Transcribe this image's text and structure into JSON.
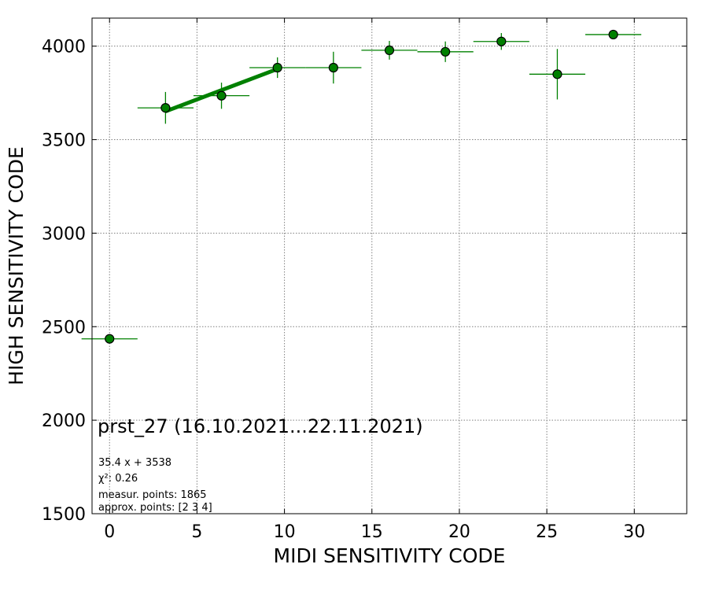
{
  "chart_data": {
    "type": "scatter",
    "xlabel": "MIDI SENSITIVITY CODE",
    "ylabel": "HIGH SENSITIVITY CODE",
    "xlim": [
      -1,
      33
    ],
    "ylim": [
      1500,
      4150
    ],
    "xticks": [
      0,
      5,
      10,
      15,
      20,
      25,
      30
    ],
    "yticks": [
      1500,
      2000,
      2500,
      3000,
      3500,
      4000
    ],
    "grid": true,
    "colors": {
      "points": "#008000",
      "edge": "#000000",
      "fit": "#008000",
      "grid": "#808080"
    },
    "points": [
      {
        "x": 0.0,
        "y": 2435,
        "xerr": 1.6,
        "yerr": 0
      },
      {
        "x": 3.2,
        "y": 3670,
        "xerr": 1.6,
        "yerr": 85
      },
      {
        "x": 6.4,
        "y": 3735,
        "xerr": 1.6,
        "yerr": 70
      },
      {
        "x": 9.6,
        "y": 3885,
        "xerr": 1.6,
        "yerr": 55
      },
      {
        "x": 12.8,
        "y": 3885,
        "xerr": 1.6,
        "yerr": 85
      },
      {
        "x": 16.0,
        "y": 3978,
        "xerr": 1.6,
        "yerr": 50
      },
      {
        "x": 19.2,
        "y": 3970,
        "xerr": 1.6,
        "yerr": 55
      },
      {
        "x": 22.4,
        "y": 4025,
        "xerr": 1.6,
        "yerr": 45
      },
      {
        "x": 25.6,
        "y": 3850,
        "xerr": 1.6,
        "yerr": 135
      },
      {
        "x": 28.8,
        "y": 4062,
        "xerr": 1.6,
        "yerr": 20
      }
    ],
    "fit": {
      "slope": 35.4,
      "intercept": 3538,
      "x_range": [
        3.2,
        9.6
      ]
    },
    "annotation": {
      "title": "prst_27 (16.10.2021...22.11.2021)",
      "lines": [
        "35.4 x + 3538",
        "χ²: 0.26",
        "measur. points: 1865",
        "approx. points: [2 3 4]"
      ]
    }
  }
}
